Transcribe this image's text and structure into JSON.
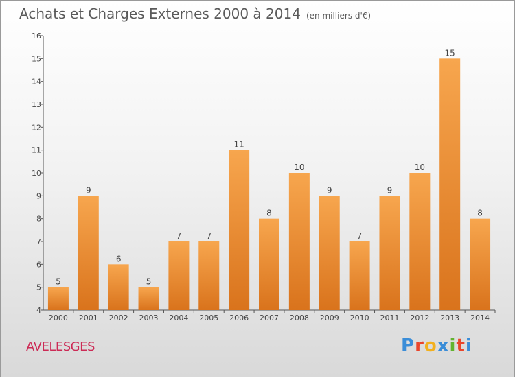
{
  "header": {
    "title": "Achats et Charges Externes 2000 à 2014",
    "subtitle": "(en milliers d'€)"
  },
  "footer": {
    "commune": "AVELESGES",
    "brand": "Proxiti"
  },
  "colors": {
    "bar_top": "#f7a64e",
    "bar_bottom": "#d9731c",
    "brand_letters": [
      "#3a8dd8",
      "#e9452b",
      "#f2b01e",
      "#3a8dd8",
      "#62b32f",
      "#e9452b",
      "#3a8dd8"
    ]
  },
  "chart_data": {
    "type": "bar",
    "title": "Achats et Charges Externes 2000 à 2014",
    "subtitle": "(en milliers d'€)",
    "categories": [
      "2000",
      "2001",
      "2002",
      "2003",
      "2004",
      "2005",
      "2006",
      "2007",
      "2008",
      "2009",
      "2010",
      "2011",
      "2012",
      "2013",
      "2014"
    ],
    "values": [
      5,
      9,
      6,
      5,
      7,
      7,
      11,
      8,
      10,
      9,
      7,
      9,
      10,
      15,
      8
    ],
    "ylim": [
      4,
      16
    ],
    "yticks": [
      4,
      5,
      6,
      7,
      8,
      9,
      10,
      11,
      12,
      13,
      14,
      15,
      16
    ],
    "grid": false,
    "legend": "none"
  }
}
